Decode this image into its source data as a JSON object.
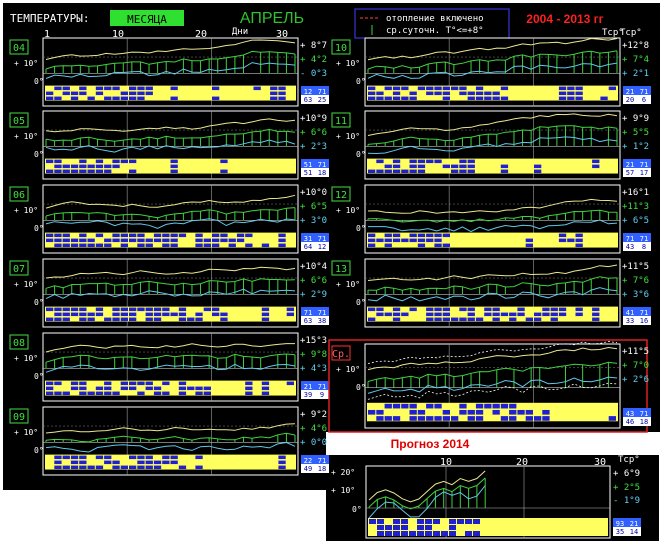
{
  "header": {
    "temperatures_label": "ТЕМПЕРАТУРЫ:",
    "month_button": "МЕСЯЦА",
    "month_title": "АПРЕЛЬ",
    "days_label": "Дни",
    "day_ticks": [
      "1",
      "10",
      "20",
      "30"
    ],
    "tcp_label": "Тср°"
  },
  "legend": {
    "heating_on": "отопление включено",
    "daily_avg": "ср.суточн. Т°<=+8°"
  },
  "range_title": "2004 - 2013 гг",
  "axis_labels": {
    "plus10": "+ 10°",
    "zero": "0°"
  },
  "years": [
    {
      "label": "04",
      "max": "+ 8°7",
      "avg": "+ 4°2",
      "min": "- 0°3",
      "counts": [
        "12",
        "63",
        "25",
        "71"
      ]
    },
    {
      "label": "05",
      "max": "+10°9",
      "avg": "+ 6°6",
      "min": "+ 2°3",
      "counts": [
        "51",
        "51",
        "18",
        "71"
      ]
    },
    {
      "label": "06",
      "max": "+10°0",
      "avg": "+ 6°5",
      "min": "+ 3°0",
      "counts": [
        "31",
        "64",
        "12",
        "71"
      ]
    },
    {
      "label": "07",
      "max": "+10°4",
      "avg": "+ 6°6",
      "min": "+ 2°9",
      "counts": [
        "71",
        "63",
        "38",
        "71"
      ]
    },
    {
      "label": "08",
      "max": "+15°3",
      "avg": "+ 9°8",
      "min": "+ 4°3",
      "counts": [
        "21",
        "39",
        "9",
        "71"
      ]
    },
    {
      "label": "09",
      "max": "+ 9°2",
      "avg": "+ 4°6",
      "min": "+ 0°0",
      "counts": [
        "22",
        "49",
        "18",
        "71"
      ]
    },
    {
      "label": "10",
      "max": "+12°8",
      "avg": "+ 7°4",
      "min": "+ 2°1",
      "counts": [
        "21",
        "20",
        "6",
        "71"
      ]
    },
    {
      "label": "11",
      "max": "+ 9°9",
      "avg": "+ 5°5",
      "min": "+ 1°2",
      "counts": [
        "21",
        "57",
        "17",
        "71"
      ]
    },
    {
      "label": "12",
      "max": "+16°1",
      "avg": "+11°3",
      "min": "+ 6°5",
      "counts": [
        "71",
        "43",
        "8",
        "71"
      ]
    },
    {
      "label": "13",
      "max": "+11°5",
      "avg": "+ 7°6",
      "min": "+ 3°6",
      "counts": [
        "41",
        "33",
        "16",
        "71"
      ]
    }
  ],
  "average": {
    "label": "Ср.",
    "max": "+11°5",
    "avg": "+ 7°0",
    "min": "+ 2°6",
    "counts": [
      "43",
      "46",
      "18",
      "71"
    ]
  },
  "forecast": {
    "title": "Прогноз 2014",
    "ticks": [
      "10",
      "20",
      "30"
    ],
    "tcp_label": "Тср°",
    "plus20": "+ 20°",
    "plus10": "+ 10°",
    "zero": "0°",
    "max": "+ 6°9",
    "avg": "+ 2°5",
    "min": "- 1°9",
    "counts": [
      "93",
      "35",
      "14",
      "21"
    ]
  },
  "colors": {
    "background": "#000000",
    "panel_border": "#ffffff",
    "max_line": "#e8e890",
    "avg_bars": "#40d040",
    "min_line": "#60c8e8",
    "heating_yellow": "#ffff60",
    "heating_blue": "#2020d0",
    "month_button": "#30e030",
    "title_green": "#30c030",
    "range_red": "#ff2020",
    "value_green": "#40e040",
    "value_white": "#ffffff",
    "value_cyan": "#60d0f0",
    "forecast_red": "#e00000"
  }
}
